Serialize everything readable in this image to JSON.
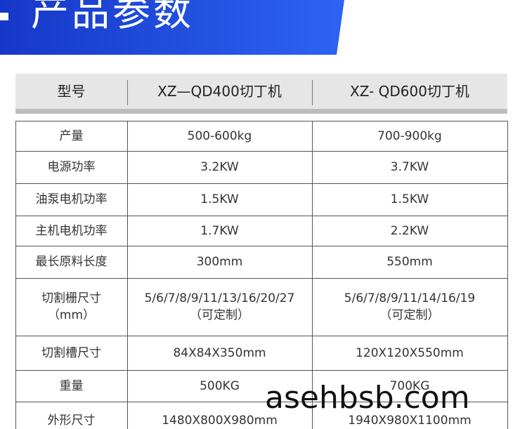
{
  "header": {
    "title": "产品参数"
  },
  "table": {
    "header": [
      "型号",
      "XZ—QD400切丁机",
      "XZ- QD600切丁机"
    ],
    "rows": [
      [
        [
          "产量"
        ],
        [
          "500-600kg"
        ],
        [
          "700-900kg"
        ]
      ],
      [
        [
          "电源功率"
        ],
        [
          "3.2KW"
        ],
        [
          "3.7KW"
        ]
      ],
      [
        [
          "油泵电机功率"
        ],
        [
          "1.5KW"
        ],
        [
          "1.5KW"
        ]
      ],
      [
        [
          "主机电机功率"
        ],
        [
          "1.7KW"
        ],
        [
          "2.2KW"
        ]
      ],
      [
        [
          "最长原料长度"
        ],
        [
          "300mm"
        ],
        [
          "550mm"
        ]
      ],
      [
        [
          "切割栅尺寸",
          "（mm）"
        ],
        [
          "5/6/7/8/9/11/13/16/20/27",
          "（可定制）"
        ],
        [
          "5/6/7/8/9/11/14/16/19",
          "（可定制）"
        ]
      ],
      [
        [
          "切割槽尺寸"
        ],
        [
          "84X84X350mm"
        ],
        [
          "120X120X550mm"
        ]
      ],
      [
        [
          "重量"
        ],
        [
          "500KG"
        ],
        [
          "700KG"
        ]
      ],
      [
        [
          "外形尺寸"
        ],
        [
          "1480X800X980mm"
        ],
        [
          "1940X980X1100mm"
        ]
      ]
    ]
  },
  "watermark": "asehbsb.com"
}
